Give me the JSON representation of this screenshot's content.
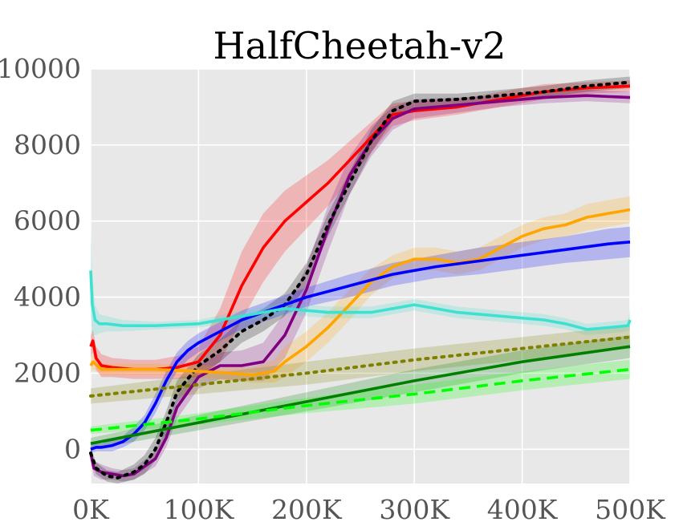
{
  "chart_data": {
    "type": "line",
    "title": "HalfCheetah-v2",
    "xlabel": "",
    "ylabel": "",
    "xlim": [
      0,
      500000
    ],
    "ylim": [
      -900,
      10000
    ],
    "grid": true,
    "background": "#e8e8e8",
    "x_ticks": [
      {
        "value": 0,
        "label": "0K"
      },
      {
        "value": 100000,
        "label": "100K"
      },
      {
        "value": 200000,
        "label": "200K"
      },
      {
        "value": 300000,
        "label": "300K"
      },
      {
        "value": 400000,
        "label": "400K"
      },
      {
        "value": 500000,
        "label": "500K"
      }
    ],
    "y_ticks": [
      {
        "value": 0,
        "label": "0"
      },
      {
        "value": 2000,
        "label": "2000"
      },
      {
        "value": 4000,
        "label": "4000"
      },
      {
        "value": 6000,
        "label": "6000"
      },
      {
        "value": 8000,
        "label": "8000"
      },
      {
        "value": 10000,
        "label": "10000"
      }
    ],
    "series": [
      {
        "color": "#ff0000",
        "style": "solid",
        "x": [
          0,
          2000,
          5000,
          10000,
          20000,
          40000,
          60000,
          80000,
          100000,
          120000,
          140000,
          160000,
          180000,
          200000,
          220000,
          240000,
          260000,
          280000,
          300000,
          340000,
          380000,
          420000,
          460000,
          500000
        ],
        "y": [
          2700,
          2850,
          2400,
          2200,
          2150,
          2100,
          2100,
          2150,
          2300,
          3000,
          4300,
          5300,
          6000,
          6500,
          7000,
          7600,
          8200,
          8800,
          8900,
          9000,
          9200,
          9400,
          9500,
          9550
        ],
        "band": [
          300,
          300,
          300,
          300,
          250,
          250,
          250,
          300,
          400,
          700,
          900,
          900,
          800,
          700,
          600,
          500,
          400,
          300,
          250,
          200,
          200,
          200,
          150,
          150
        ]
      },
      {
        "color": "#800080",
        "style": "solid",
        "x": [
          0,
          3000,
          10000,
          20000,
          30000,
          40000,
          60000,
          70000,
          80000,
          100000,
          120000,
          140000,
          160000,
          180000,
          200000,
          220000,
          240000,
          260000,
          280000,
          300000,
          340000,
          380000,
          420000,
          460000,
          500000
        ],
        "y": [
          -100,
          -500,
          -600,
          -650,
          -700,
          -650,
          -250,
          300,
          1100,
          1900,
          2200,
          2200,
          2300,
          3000,
          4200,
          5800,
          7200,
          8100,
          8700,
          8950,
          9050,
          9150,
          9250,
          9300,
          9250
        ],
        "band": [
          200,
          200,
          200,
          150,
          150,
          150,
          200,
          250,
          300,
          300,
          350,
          400,
          500,
          600,
          600,
          600,
          500,
          400,
          300,
          250,
          200,
          150,
          150,
          150,
          150
        ]
      },
      {
        "color": "#000000",
        "style": "dotted",
        "x": [
          0,
          5000,
          15000,
          25000,
          40000,
          50000,
          60000,
          70000,
          80000,
          100000,
          120000,
          140000,
          160000,
          180000,
          200000,
          220000,
          240000,
          260000,
          280000,
          300000,
          340000,
          380000,
          420000,
          460000,
          500000
        ],
        "y": [
          -100,
          -500,
          -700,
          -750,
          -600,
          -400,
          0,
          700,
          1500,
          2200,
          2600,
          3100,
          3400,
          3800,
          4600,
          5900,
          7000,
          8100,
          8900,
          9150,
          9200,
          9300,
          9400,
          9550,
          9650
        ],
        "band": [
          150,
          150,
          150,
          150,
          200,
          250,
          300,
          300,
          300,
          300,
          300,
          300,
          300,
          300,
          300,
          300,
          300,
          300,
          250,
          200,
          150,
          150,
          150,
          150,
          150
        ]
      },
      {
        "color": "#ffa500",
        "style": "solid",
        "x": [
          0,
          2000,
          10000,
          30000,
          60000,
          100000,
          130000,
          150000,
          170000,
          180000,
          200000,
          220000,
          240000,
          260000,
          280000,
          300000,
          320000,
          340000,
          360000,
          380000,
          400000,
          420000,
          440000,
          460000,
          480000,
          500000
        ],
        "y": [
          2200,
          2300,
          2100,
          2100,
          2100,
          2050,
          2000,
          1950,
          2050,
          2300,
          2700,
          3200,
          3800,
          4400,
          4800,
          5000,
          5000,
          4900,
          5000,
          5300,
          5600,
          5800,
          5900,
          6100,
          6200,
          6300
        ],
        "band": [
          200,
          200,
          150,
          150,
          150,
          150,
          200,
          200,
          300,
          400,
          400,
          400,
          400,
          350,
          300,
          300,
          300,
          300,
          300,
          300,
          300,
          300,
          300,
          350,
          350,
          350
        ]
      },
      {
        "color": "#0000ff",
        "style": "solid",
        "x": [
          0,
          5000,
          10000,
          20000,
          30000,
          40000,
          50000,
          60000,
          70000,
          80000,
          90000,
          100000,
          120000,
          140000,
          160000,
          180000,
          200000,
          240000,
          280000,
          320000,
          360000,
          400000,
          440000,
          480000,
          500000
        ],
        "y": [
          0,
          50,
          50,
          100,
          200,
          400,
          700,
          1200,
          1800,
          2300,
          2600,
          2800,
          3100,
          3400,
          3600,
          3800,
          4000,
          4300,
          4600,
          4800,
          4950,
          5100,
          5250,
          5400,
          5450
        ],
        "band": [
          100,
          100,
          100,
          150,
          150,
          200,
          200,
          250,
          250,
          250,
          250,
          250,
          250,
          250,
          250,
          250,
          250,
          300,
          300,
          300,
          350,
          350,
          350,
          400,
          400
        ]
      },
      {
        "color": "#40e0d0",
        "style": "solid",
        "x": [
          0,
          1500,
          4000,
          8000,
          15000,
          30000,
          60000,
          100000,
          140000,
          180000,
          220000,
          260000,
          300000,
          340000,
          380000,
          420000,
          440000,
          460000,
          480000,
          498000,
          500000
        ],
        "y": [
          4700,
          3800,
          3400,
          3300,
          3300,
          3250,
          3250,
          3300,
          3500,
          3700,
          3600,
          3600,
          3800,
          3600,
          3500,
          3400,
          3300,
          3150,
          3200,
          3250,
          3400
        ],
        "band": [
          1100,
          800,
          400,
          250,
          200,
          150,
          100,
          100,
          150,
          150,
          150,
          150,
          150,
          150,
          150,
          150,
          150,
          150,
          150,
          150,
          250
        ]
      },
      {
        "color": "#808000",
        "style": "dotted",
        "x": [
          0,
          100000,
          200000,
          300000,
          400000,
          500000
        ],
        "y": [
          1400,
          1700,
          2000,
          2350,
          2650,
          2950
        ],
        "band": [
          200,
          250,
          300,
          300,
          300,
          300
        ]
      },
      {
        "color": "#008000",
        "style": "solid",
        "x": [
          0,
          100000,
          200000,
          300000,
          400000,
          500000
        ],
        "y": [
          150,
          700,
          1250,
          1800,
          2300,
          2700
        ],
        "band": [
          150,
          200,
          250,
          300,
          300,
          300
        ]
      },
      {
        "color": "#00ff00",
        "style": "dashed",
        "x": [
          0,
          100000,
          200000,
          300000,
          400000,
          500000
        ],
        "y": [
          500,
          800,
          1150,
          1450,
          1800,
          2100
        ],
        "band": [
          100,
          150,
          200,
          250,
          250,
          250
        ]
      }
    ]
  }
}
